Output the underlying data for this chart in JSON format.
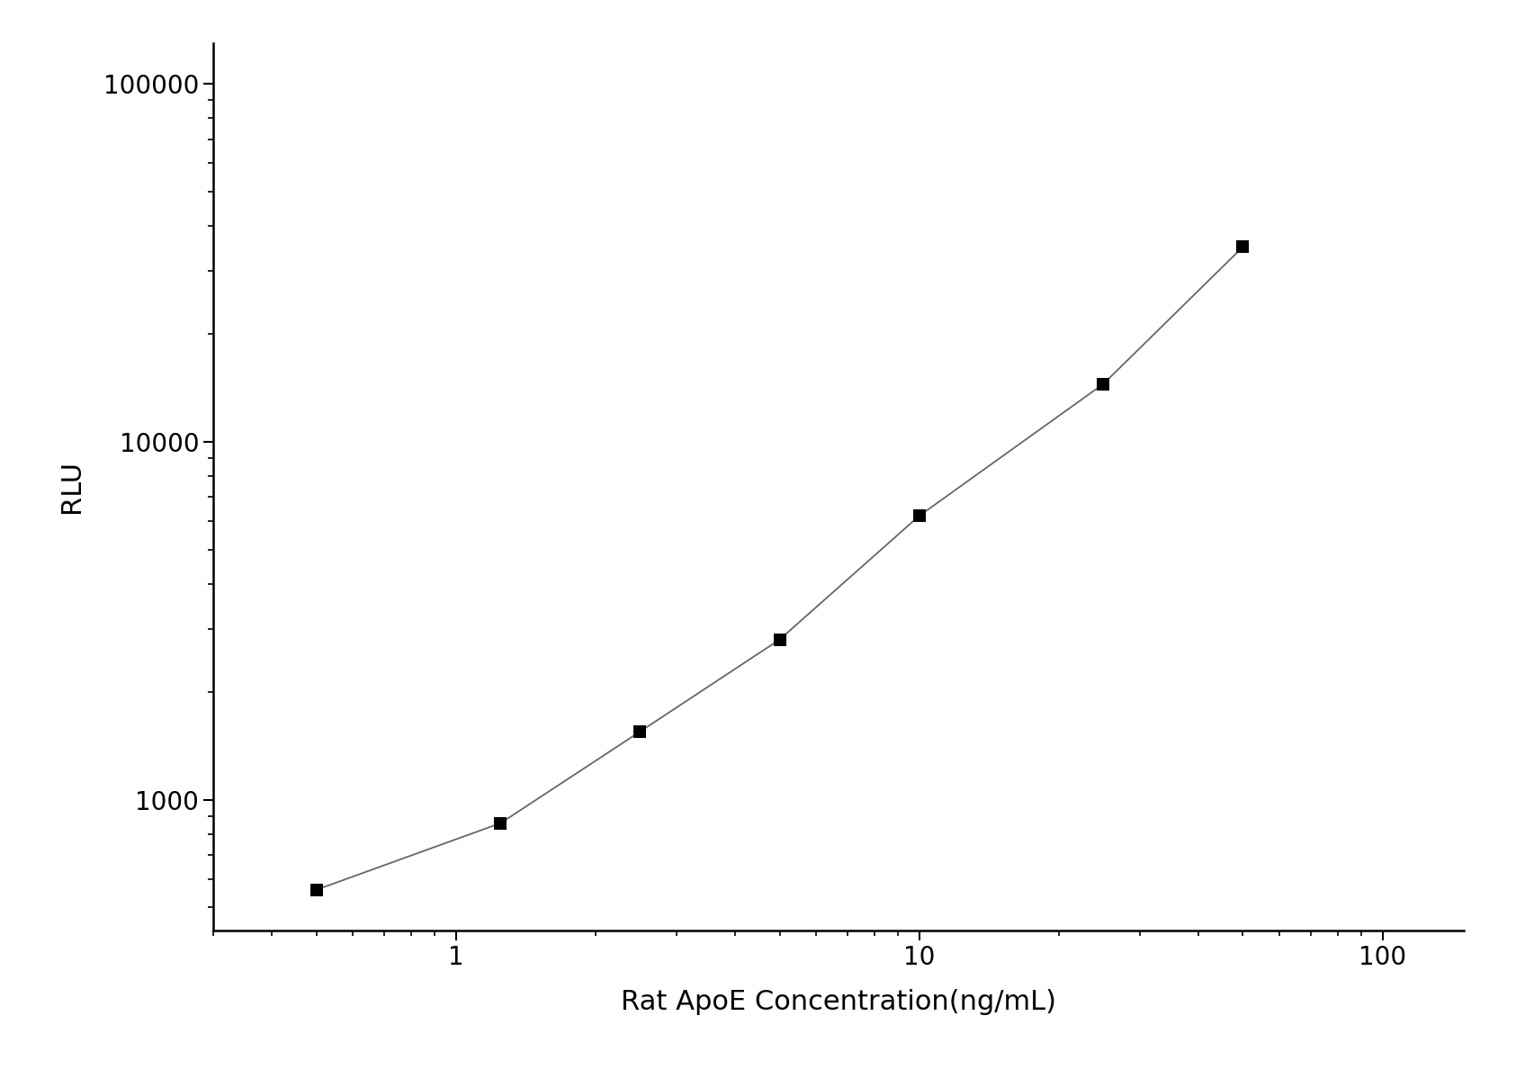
{
  "x_data": [
    0.5,
    1.25,
    2.5,
    5.0,
    10.0,
    25.0,
    50.0
  ],
  "y_data": [
    560,
    860,
    1550,
    2800,
    6200,
    14500,
    35000
  ],
  "xlabel": "Rat ApoE Concentration(ng/mL)",
  "ylabel": "RLU",
  "xlim": [
    0.3,
    150
  ],
  "ylim": [
    430,
    130000
  ],
  "background_color": "#ffffff",
  "line_color": "#666666",
  "marker_color": "#000000",
  "marker_size": 10,
  "linewidth": 1.3,
  "xlabel_fontsize": 22,
  "ylabel_fontsize": 22,
  "tick_fontsize": 20,
  "spine_color": "#000000",
  "spine_linewidth": 1.8,
  "yticks": [
    1000,
    10000,
    100000
  ],
  "ytick_labels": [
    "1000",
    "10000",
    "100000"
  ],
  "xticks": [
    1,
    10,
    100
  ],
  "xtick_labels": [
    "1",
    "10",
    "100"
  ]
}
